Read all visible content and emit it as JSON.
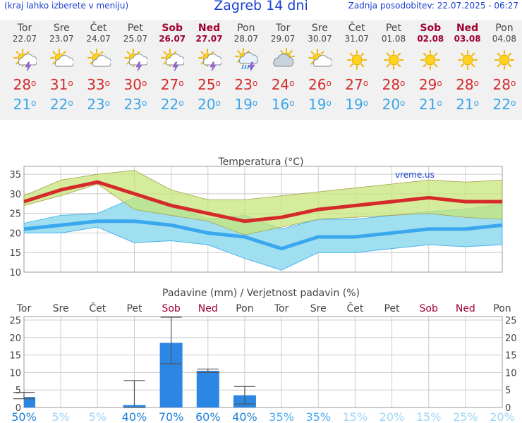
{
  "header": {
    "menu_hint": "(kraj lahko izberete v meniju)",
    "title": "Zagreb 14 dni",
    "updated": "Zadnja posodobitev: 22.07.2025 - 06:27"
  },
  "days": [
    {
      "name": "Tor",
      "date": "22.07",
      "weekend": false,
      "icon": "sun-thunderstorm-icon",
      "tmax": "28",
      "tmin": "21"
    },
    {
      "name": "Sre",
      "date": "23.07",
      "weekend": false,
      "icon": "sun-cloud-icon",
      "tmax": "31",
      "tmin": "22"
    },
    {
      "name": "Čet",
      "date": "24.07",
      "weekend": false,
      "icon": "sun-cloud-icon",
      "tmax": "33",
      "tmin": "23"
    },
    {
      "name": "Pet",
      "date": "25.07",
      "weekend": false,
      "icon": "sun-thunderstorm-icon",
      "tmax": "30",
      "tmin": "23"
    },
    {
      "name": "Sob",
      "date": "26.07",
      "weekend": true,
      "icon": "sun-thunderstorm-icon",
      "tmax": "27",
      "tmin": "22"
    },
    {
      "name": "Ned",
      "date": "27.07",
      "weekend": true,
      "icon": "sun-thunderstorm-icon",
      "tmax": "25",
      "tmin": "20"
    },
    {
      "name": "Pon",
      "date": "28.07",
      "weekend": false,
      "icon": "sun-rain-thunder-icon",
      "tmax": "23",
      "tmin": "19"
    },
    {
      "name": "Tor",
      "date": "29.07",
      "weekend": false,
      "icon": "cloudy-icon",
      "tmax": "24",
      "tmin": "16"
    },
    {
      "name": "Sre",
      "date": "30.07",
      "weekend": false,
      "icon": "sun-cloud-icon",
      "tmax": "26",
      "tmin": "19"
    },
    {
      "name": "Čet",
      "date": "31.07",
      "weekend": false,
      "icon": "sun-icon",
      "tmax": "27",
      "tmin": "19"
    },
    {
      "name": "Pet",
      "date": "01.08",
      "weekend": false,
      "icon": "sun-icon",
      "tmax": "28",
      "tmin": "20"
    },
    {
      "name": "Sob",
      "date": "02.08",
      "weekend": true,
      "icon": "sun-icon",
      "tmax": "29",
      "tmin": "21"
    },
    {
      "name": "Ned",
      "date": "03.08",
      "weekend": true,
      "icon": "sun-icon",
      "tmax": "28",
      "tmin": "21"
    },
    {
      "name": "Pon",
      "date": "04.08",
      "weekend": false,
      "icon": "sun-icon",
      "tmax": "28",
      "tmin": "22"
    }
  ],
  "colors": {
    "tmax": "#d42a2a",
    "tmin": "#39a6e8",
    "weekend": "#a00030",
    "precip_bar": "#2b87e3",
    "warm_band": "#c5e67a",
    "cool_band": "#9fdff0",
    "overlap_band": "#79c66e"
  },
  "chart_data": [
    {
      "type": "line",
      "title": "Temperatura (°C)",
      "watermark": "vreme.us",
      "categories": [
        "22.07",
        "23.07",
        "24.07",
        "25.07",
        "26.07",
        "27.07",
        "28.07",
        "29.07",
        "30.07",
        "31.07",
        "01.08",
        "02.08",
        "03.08",
        "04.08"
      ],
      "ylim": [
        10,
        37
      ],
      "yticks": [
        10,
        15,
        20,
        25,
        30,
        35
      ],
      "series": [
        {
          "values": [
            28,
            31,
            33,
            30,
            27,
            25,
            23,
            24,
            26,
            27,
            28,
            29,
            28,
            28
          ]
        },
        {
          "values": [
            21,
            22,
            23,
            23,
            22,
            20,
            19,
            16,
            19,
            19,
            20,
            21,
            21,
            22
          ]
        }
      ],
      "max_band": {
        "upper": [
          29.5,
          33.5,
          35,
          36,
          31,
          28.5,
          28.5,
          29.5,
          30.5,
          31.5,
          32.5,
          33.5,
          33,
          33.5
        ],
        "lower": [
          27,
          29.5,
          32.5,
          26,
          24.5,
          23,
          19.5,
          21.5,
          23.5,
          24,
          24.5,
          25,
          24,
          23.5
        ]
      },
      "min_band": {
        "upper": [
          22.5,
          24.5,
          25,
          29,
          27,
          23.5,
          24.5,
          21,
          23.5,
          23.5,
          24.5,
          25.5,
          26,
          27.5
        ],
        "lower": [
          20,
          20,
          21.5,
          17.5,
          18,
          17,
          13.5,
          10.5,
          15,
          15,
          16,
          17,
          16.5,
          17
        ]
      },
      "grid": true
    },
    {
      "type": "bar",
      "title": "Padavine (mm) / Verjetnost padavin (%)",
      "categories": [
        "Tor",
        "Sre",
        "Čet",
        "Pet",
        "Sob",
        "Ned",
        "Pon",
        "Tor",
        "Sre",
        "Čet",
        "Pet",
        "Sob",
        "Ned",
        "Pon"
      ],
      "weekend": [
        false,
        false,
        false,
        false,
        true,
        true,
        false,
        false,
        false,
        false,
        false,
        true,
        true,
        false
      ],
      "values": [
        3,
        0,
        0,
        0.7,
        18.5,
        10.5,
        3.5,
        0,
        0,
        0,
        0,
        0,
        0,
        0
      ],
      "error_low": [
        2.5,
        null,
        null,
        0,
        12.5,
        10,
        1,
        null,
        null,
        null,
        null,
        null,
        null,
        null
      ],
      "error_high": [
        4.3,
        null,
        null,
        7.7,
        25.8,
        11,
        6,
        null,
        null,
        null,
        null,
        null,
        null,
        null
      ],
      "probability": [
        "50%",
        "5%",
        "5%",
        "40%",
        "70%",
        "60%",
        "40%",
        "35%",
        "35%",
        "15%",
        "20%",
        "15%",
        "25%",
        "20%"
      ],
      "probability_values": [
        50,
        5,
        5,
        40,
        70,
        60,
        40,
        35,
        35,
        15,
        20,
        15,
        25,
        20
      ],
      "ylim": [
        0,
        26
      ],
      "yticks": [
        0,
        5,
        10,
        15,
        20,
        25
      ],
      "grid": true
    }
  ]
}
